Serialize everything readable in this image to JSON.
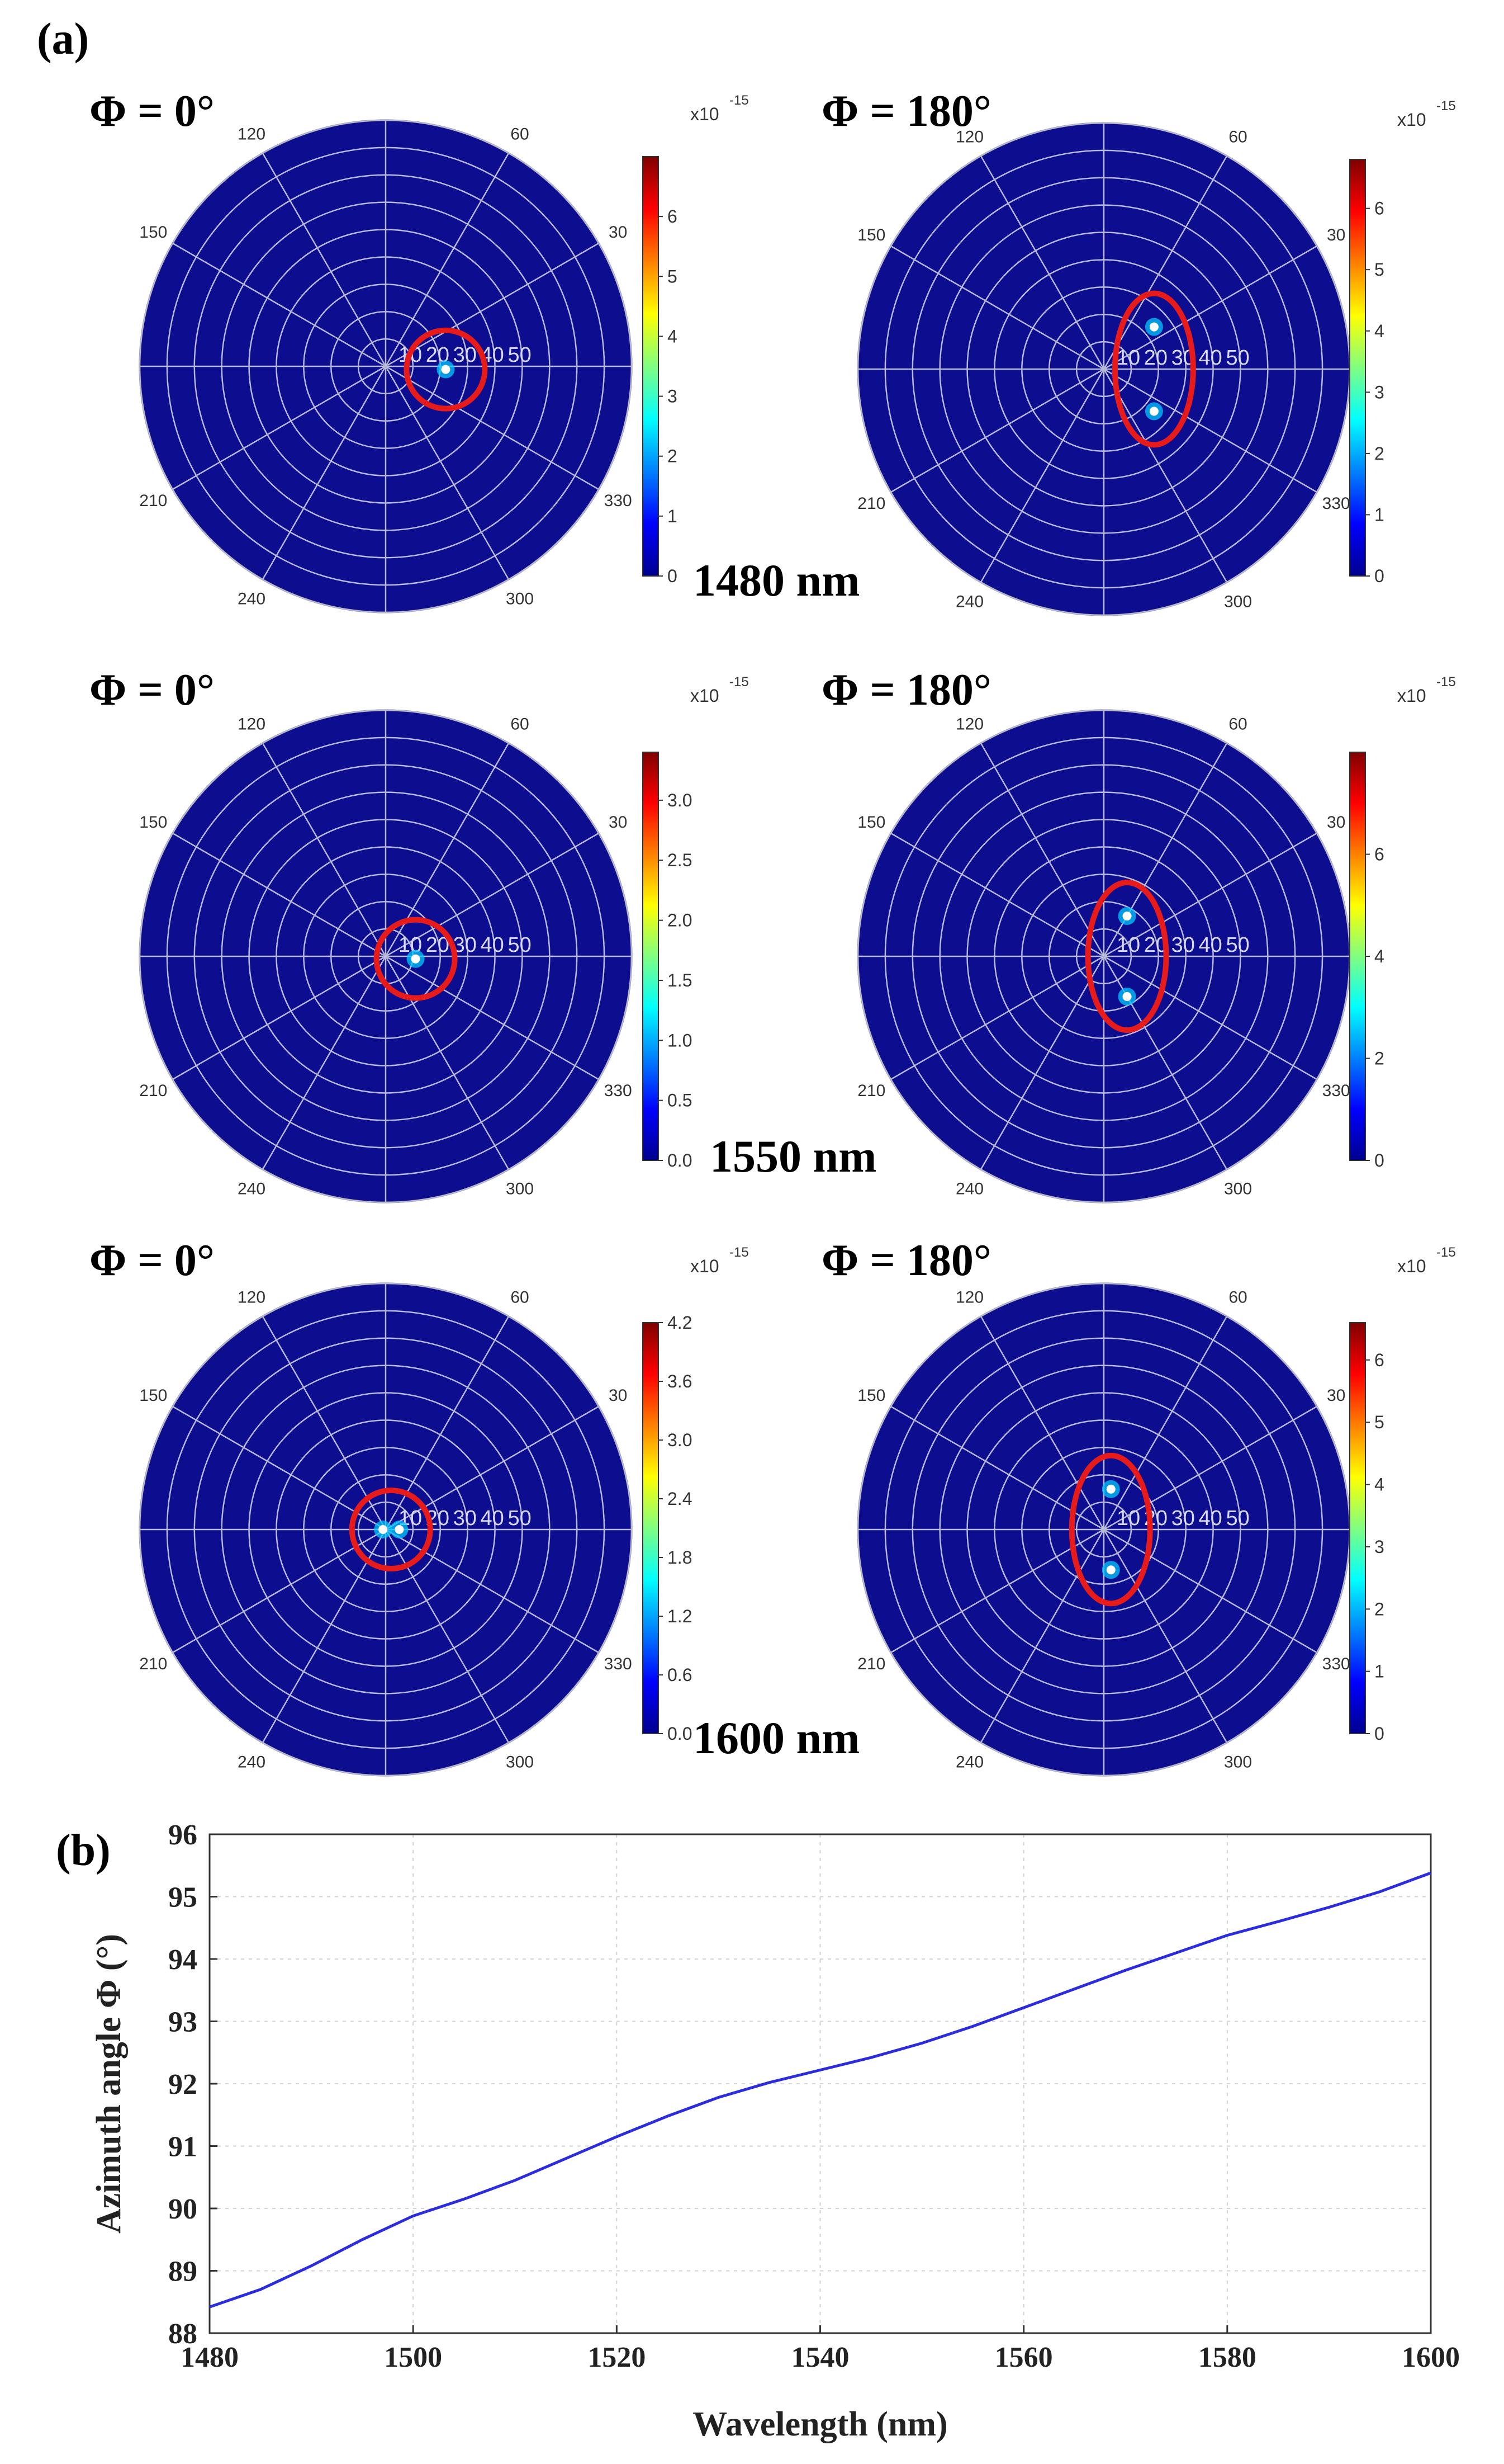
{
  "panel_labels": {
    "a": "(a)",
    "b": "(b)"
  },
  "colors": {
    "disk": "#0d0d8f",
    "grid": "#b8b8d8",
    "marker": "#e81b1b",
    "line": "#2b2be0",
    "axis": "#333333",
    "gridline": "#d3d3d3"
  },
  "polar_labels": {
    "angles": [
      "30",
      "60",
      "120",
      "150",
      "210",
      "240",
      "300",
      "330"
    ],
    "radii": [
      "10",
      "20",
      "30",
      "40",
      "50"
    ],
    "exponent": "x10",
    "exponent_power": "-15"
  },
  "polar_plots": [
    {
      "title": "Φ = 0°",
      "colorbar_ticks": [
        "0",
        "1",
        "2",
        "3",
        "4",
        "5",
        "6"
      ],
      "colorbar_max": 7,
      "hotspots": [
        [
          22,
          357
        ]
      ],
      "marker": "circle",
      "wavelength_label": "1480 nm"
    },
    {
      "title": "Φ = 180°",
      "colorbar_ticks": [
        "0",
        "1",
        "2",
        "3",
        "4",
        "5",
        "6"
      ],
      "colorbar_max": 6.8,
      "hotspots": [
        [
          24,
          40
        ],
        [
          24,
          320
        ]
      ],
      "marker": "ellipse"
    },
    {
      "title": "Φ = 0°",
      "colorbar_ticks": [
        "0.0",
        "0.5",
        "1.0",
        "1.5",
        "2.0",
        "2.5",
        "3.0"
      ],
      "colorbar_max": 3.4,
      "hotspots": [
        [
          11,
          355
        ]
      ],
      "marker": "circle",
      "wavelength_label": "1550 nm"
    },
    {
      "title": "Φ = 180°",
      "colorbar_ticks": [
        "0",
        "2",
        "4",
        "6"
      ],
      "colorbar_max": 8,
      "hotspots": [
        [
          17,
          60
        ],
        [
          17,
          300
        ]
      ],
      "marker": "ellipse"
    },
    {
      "title": "Φ = 0°",
      "colorbar_ticks": [
        "0.0",
        "0.6",
        "1.2",
        "1.8",
        "2.4",
        "3.0",
        "3.6",
        "4.2"
      ],
      "colorbar_max": 4.2,
      "hotspots": [
        [
          5,
          0
        ],
        [
          1,
          180
        ]
      ],
      "marker": "circle",
      "wavelength_label": "1600 nm"
    },
    {
      "title": "Φ = 180°",
      "colorbar_ticks": [
        "0",
        "1",
        "2",
        "3",
        "4",
        "5",
        "6"
      ],
      "colorbar_max": 6.6,
      "hotspots": [
        [
          15,
          80
        ],
        [
          15,
          280
        ]
      ],
      "marker": "ellipse"
    }
  ],
  "chart_data": {
    "type": "line",
    "xlabel": "Wavelength (nm)",
    "ylabel": "Azimuth angle Φ (°)",
    "xlim": [
      1480,
      1600
    ],
    "ylim": [
      88,
      96
    ],
    "xticks": [
      1480,
      1500,
      1520,
      1540,
      1560,
      1580,
      1600
    ],
    "yticks": [
      88,
      89,
      90,
      91,
      92,
      93,
      94,
      95,
      96
    ],
    "grid": true,
    "series": [
      {
        "name": "Azimuth angle",
        "x": [
          1480,
          1485,
          1490,
          1495,
          1500,
          1505,
          1510,
          1515,
          1520,
          1525,
          1530,
          1535,
          1540,
          1545,
          1550,
          1555,
          1560,
          1565,
          1570,
          1575,
          1580,
          1585,
          1590,
          1595,
          1600
        ],
        "y": [
          88.42,
          88.7,
          89.08,
          89.5,
          89.88,
          90.15,
          90.45,
          90.8,
          91.15,
          91.48,
          91.78,
          92.02,
          92.22,
          92.42,
          92.65,
          92.92,
          93.22,
          93.52,
          93.82,
          94.1,
          94.38,
          94.6,
          94.83,
          95.08,
          95.38
        ]
      }
    ]
  }
}
